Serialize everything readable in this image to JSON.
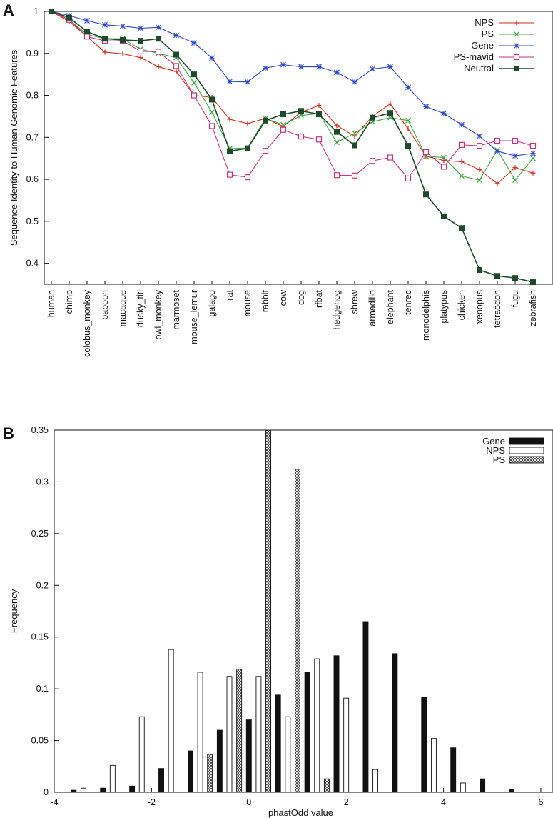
{
  "chart_data": [
    {
      "panel": "A",
      "type": "line",
      "ylabel": "Sequence Identity to Human Genomic Features",
      "xlabel": "",
      "ylim": [
        0.35,
        1.0
      ],
      "yticks": [
        0.4,
        0.5,
        0.6,
        0.7,
        0.8,
        0.9,
        1
      ],
      "grid": false,
      "legend": "top-right",
      "categories": [
        "human",
        "chimp",
        "colobus_monkey",
        "baboon",
        "macaque",
        "dusky_titi",
        "owl_monkey",
        "marmoset",
        "mouse_lemur",
        "galago",
        "rat",
        "mouse",
        "rabbit",
        "cow",
        "dog",
        "rfbat",
        "hedgehog",
        "shrew",
        "armadillo",
        "elephant",
        "tenrec",
        "monodelphis",
        "platypus",
        "chicken",
        "xenopus",
        "tetraodon",
        "fugu",
        "zebrafish"
      ],
      "series": [
        {
          "name": "NPS",
          "color": "#d62a1a",
          "marker": "plus",
          "values": [
            1.0,
            0.976,
            0.94,
            0.903,
            0.899,
            0.89,
            0.868,
            0.857,
            0.8,
            0.795,
            0.743,
            0.733,
            0.745,
            0.726,
            0.76,
            0.776,
            0.728,
            0.703,
            0.75,
            0.78,
            0.72,
            0.655,
            0.645,
            0.642,
            0.623,
            0.59,
            0.628,
            0.615
          ]
        },
        {
          "name": "PS",
          "color": "#3ca63c",
          "marker": "x",
          "values": [
            1.0,
            0.98,
            0.945,
            0.935,
            0.935,
            0.91,
            0.9,
            0.89,
            0.83,
            0.76,
            0.673,
            0.675,
            0.745,
            0.73,
            0.752,
            0.757,
            0.688,
            0.71,
            0.737,
            0.747,
            0.74,
            0.655,
            0.652,
            0.608,
            0.598,
            0.67,
            0.598,
            0.65
          ]
        },
        {
          "name": "Gene",
          "color": "#2b47c9",
          "marker": "star",
          "values": [
            1.0,
            0.99,
            0.978,
            0.968,
            0.965,
            0.96,
            0.962,
            0.943,
            0.925,
            0.889,
            0.833,
            0.832,
            0.865,
            0.873,
            0.868,
            0.868,
            0.855,
            0.832,
            0.863,
            0.868,
            0.819,
            0.773,
            0.757,
            0.73,
            0.703,
            0.667,
            0.656,
            0.662
          ]
        },
        {
          "name": "PS-mavid",
          "color": "#c8337f",
          "marker": "box",
          "values": [
            1.0,
            0.98,
            0.94,
            0.93,
            0.93,
            0.905,
            0.904,
            0.87,
            0.8,
            0.727,
            0.611,
            0.605,
            0.668,
            0.718,
            0.702,
            0.695,
            0.61,
            0.609,
            0.644,
            0.652,
            0.602,
            0.665,
            0.63,
            0.682,
            0.68,
            0.692,
            0.692,
            0.68
          ]
        },
        {
          "name": "Neutral",
          "color": "#1c4a2a",
          "marker": "filled-box",
          "values": [
            1.0,
            0.985,
            0.952,
            0.935,
            0.932,
            0.93,
            0.935,
            0.897,
            0.85,
            0.79,
            0.667,
            0.674,
            0.74,
            0.755,
            0.763,
            0.755,
            0.713,
            0.681,
            0.747,
            0.758,
            0.68,
            0.564,
            0.512,
            0.484,
            0.384,
            0.37,
            0.365,
            0.355
          ]
        }
      ],
      "annotations": [
        {
          "type": "vertical-dashed-line",
          "between": [
            "monodelphis",
            "platypus"
          ]
        }
      ]
    },
    {
      "panel": "B",
      "type": "bar",
      "xlabel": "phastOdd value",
      "ylabel": "Frequency",
      "xlim": [
        -4,
        6
      ],
      "ylim": [
        0,
        0.35
      ],
      "xticks": [
        -4,
        -2,
        0,
        2,
        4,
        6
      ],
      "yticks": [
        0,
        0.05,
        0.1,
        0.15,
        0.2,
        0.25,
        0.3,
        0.35
      ],
      "grid": false,
      "legend": "top-right",
      "series": [
        {
          "name": "Gene",
          "style": "black",
          "x": [
            -3.6,
            -3.0,
            -2.4,
            -1.8,
            -1.2,
            -0.6,
            0.0,
            0.6,
            1.2,
            1.8,
            2.4,
            3.0,
            3.6,
            4.2,
            4.8,
            5.4
          ],
          "values": [
            0.002,
            0.004,
            0.006,
            0.023,
            0.04,
            0.06,
            0.07,
            0.094,
            0.116,
            0.132,
            0.165,
            0.134,
            0.092,
            0.043,
            0.013,
            0.003
          ]
        },
        {
          "name": "NPS",
          "style": "white",
          "x": [
            -3.4,
            -2.8,
            -2.2,
            -1.6,
            -1.0,
            -0.4,
            0.2,
            0.8,
            1.4,
            2.0,
            2.6,
            3.2,
            3.8,
            4.4
          ],
          "values": [
            0.004,
            0.026,
            0.073,
            0.138,
            0.116,
            0.112,
            0.112,
            0.073,
            0.129,
            0.091,
            0.022,
            0.039,
            0.052,
            0.009
          ]
        },
        {
          "name": "PS",
          "style": "crosshatch",
          "x": [
            -0.8,
            -0.2,
            0.4,
            1.0,
            1.6
          ],
          "values": [
            0.037,
            0.119,
            0.35,
            0.312,
            0.013
          ]
        }
      ]
    }
  ],
  "panels": {
    "a_letter": "A",
    "b_letter": "B"
  }
}
